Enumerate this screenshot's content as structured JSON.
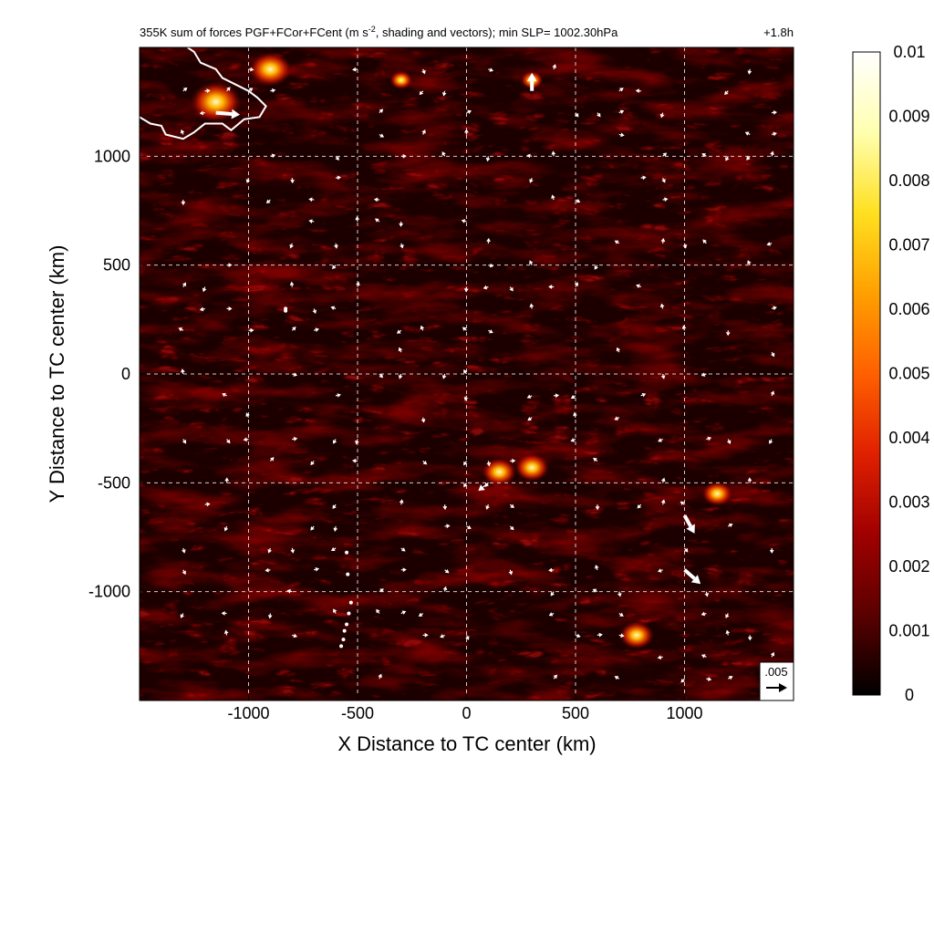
{
  "chart_data": {
    "type": "heatmap",
    "title": "355K sum of forces PGF+FCor+FCent (m s⁻², shading and vectors); min SLP= 1002.30hPa",
    "title_left": "355K sum of forces PGF+FCor+FCent (m s",
    "title_sup": "-2",
    "title_right": ", shading and vectors); min SLP= 1002.30hPa",
    "time_label": "+1.8h",
    "xlabel": "X Distance to TC center (km)",
    "ylabel": "Y Distance to TC center (km)",
    "xlim": [
      -1500,
      1500
    ],
    "ylim": [
      -1500,
      1500
    ],
    "xticks": [
      -1000,
      -500,
      0,
      500,
      1000
    ],
    "xtick_labels": [
      "-1000",
      "-500",
      "0",
      "500",
      "1000"
    ],
    "yticks": [
      1000,
      500,
      0,
      -500,
      -1000
    ],
    "ytick_labels": [
      "1000",
      "500",
      "0",
      "-500",
      "-1000"
    ],
    "grid": true,
    "colorbar": {
      "ticks": [
        0.01,
        0.009,
        0.008,
        0.007,
        0.006,
        0.005,
        0.004,
        0.003,
        0.002,
        0.001,
        0
      ],
      "tick_labels": [
        "0.01",
        "0.009",
        "0.008",
        "0.007",
        "0.006",
        "0.005",
        "0.004",
        "0.003",
        "0.002",
        "0.001",
        "0"
      ],
      "min": 0,
      "max": 0.01,
      "colors": [
        "#000000",
        "#5a0000",
        "#a00000",
        "#e02000",
        "#ff6000",
        "#ffa000",
        "#ffe020",
        "#ffffb0",
        "#ffffff"
      ]
    },
    "reference_vector_label": ".005",
    "reference_vector_value": 0.005,
    "hotspots": [
      {
        "x": -1150,
        "y": 1250,
        "value": 0.01
      },
      {
        "x": -900,
        "y": 1400,
        "value": 0.008
      },
      {
        "x": 150,
        "y": -450,
        "value": 0.006
      },
      {
        "x": 300,
        "y": -430,
        "value": 0.006
      },
      {
        "x": 1150,
        "y": -550,
        "value": 0.005
      },
      {
        "x": 780,
        "y": -1200,
        "value": 0.006
      },
      {
        "x": -300,
        "y": 1350,
        "value": 0.003
      },
      {
        "x": 300,
        "y": 1350,
        "value": 0.003
      }
    ],
    "large_vectors": [
      {
        "x": -1150,
        "y": 1200,
        "u": 0.006,
        "v": -0.0005
      },
      {
        "x": 300,
        "y": 1300,
        "u": 0.0,
        "v": 0.0045
      },
      {
        "x": 1000,
        "y": -650,
        "u": 0.0025,
        "v": -0.0045
      },
      {
        "x": 1000,
        "y": -900,
        "u": 0.004,
        "v": -0.0035
      },
      {
        "x": 100,
        "y": -500,
        "u": -0.0025,
        "v": -0.002
      }
    ],
    "small_vector_max": 0.0012,
    "coastline": [
      {
        "x": -1500,
        "y": 1180
      },
      {
        "x": -1450,
        "y": 1150
      },
      {
        "x": -1400,
        "y": 1140
      },
      {
        "x": -1380,
        "y": 1100
      },
      {
        "x": -1300,
        "y": 1080
      },
      {
        "x": -1250,
        "y": 1110
      },
      {
        "x": -1200,
        "y": 1150
      },
      {
        "x": -1120,
        "y": 1150
      },
      {
        "x": -1080,
        "y": 1120
      },
      {
        "x": -1020,
        "y": 1170
      },
      {
        "x": -950,
        "y": 1180
      },
      {
        "x": -920,
        "y": 1230
      },
      {
        "x": -960,
        "y": 1270
      },
      {
        "x": -1000,
        "y": 1300
      },
      {
        "x": -1060,
        "y": 1330
      },
      {
        "x": -1120,
        "y": 1360
      },
      {
        "x": -1150,
        "y": 1400
      },
      {
        "x": -1220,
        "y": 1430
      },
      {
        "x": -1250,
        "y": 1480
      },
      {
        "x": -1280,
        "y": 1500
      }
    ],
    "islands": [
      {
        "x": -575,
        "y": -1250
      },
      {
        "x": -565,
        "y": -1220
      },
      {
        "x": -560,
        "y": -1180
      },
      {
        "x": -550,
        "y": -1150
      },
      {
        "x": -540,
        "y": -1100
      },
      {
        "x": -530,
        "y": -1050
      },
      {
        "x": -545,
        "y": -920
      },
      {
        "x": -550,
        "y": -820
      },
      {
        "x": -830,
        "y": 300
      },
      {
        "x": -830,
        "y": 290
      }
    ]
  }
}
